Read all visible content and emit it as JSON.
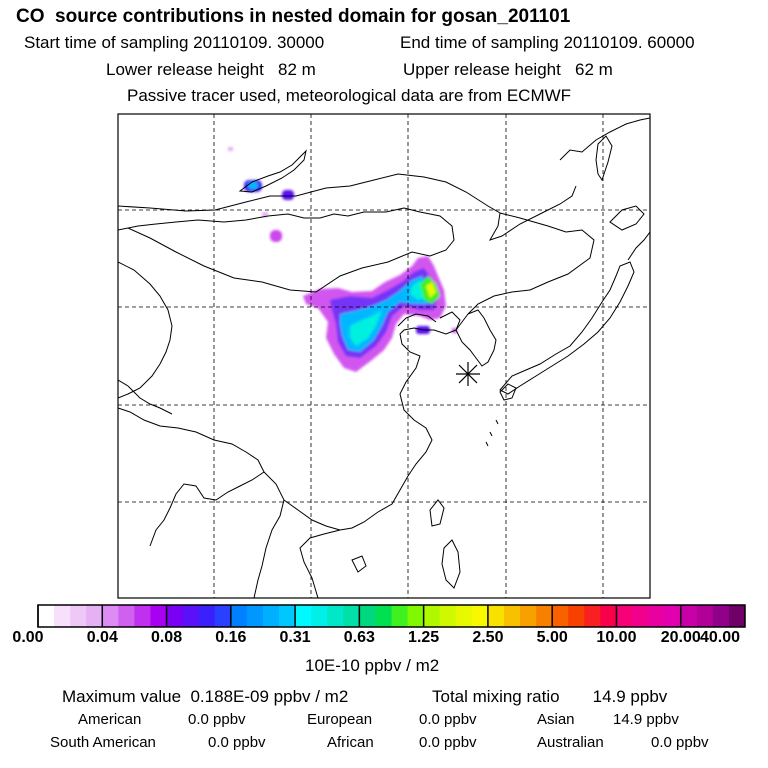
{
  "header": {
    "title": "CO  source contributions in nested domain for gosan_201101",
    "start_time_label": "Start time of sampling 20110109. 30000",
    "end_time_label": "End time of sampling 20110109. 60000",
    "lower_release_label": "Lower release height   82 m",
    "upper_release_label": "Upper release height   62 m",
    "tracer_note": "Passive tracer used, meteorological data are from ECMWF"
  },
  "colorbar": {
    "tick_labels": [
      "0.00",
      "0.04",
      "0.08",
      "0.16",
      "0.31",
      "0.63",
      "1.25",
      "2.50",
      "5.00",
      "10.00",
      "20.00",
      "40.00"
    ],
    "unit": "10E-10 ppbv / m2",
    "colors": [
      [
        "#ffffff",
        "#f6e0fb",
        "#eec8f7",
        "#e6b0f4"
      ],
      [
        "#dc8cf2",
        "#d060f0",
        "#c030f0",
        "#a800f0"
      ],
      [
        "#7a00f4",
        "#5a10f8",
        "#3a20fc",
        "#2a40ff"
      ],
      [
        "#0080ff",
        "#0098ff",
        "#00b0ff",
        "#00c8ff"
      ],
      [
        "#00f8ff",
        "#00f0e8",
        "#00e8c8",
        "#00e0a8"
      ],
      [
        "#00d880",
        "#00e050",
        "#40f020",
        "#80f800"
      ],
      [
        "#b0f800",
        "#d0f800",
        "#e8f800",
        "#f8f800"
      ],
      [
        "#f8e000",
        "#f8c000",
        "#f8a000",
        "#f88000"
      ],
      [
        "#f86000",
        "#f84000",
        "#f82020",
        "#f8004a"
      ],
      [
        "#f80078",
        "#f0008c",
        "#e800a0",
        "#e000b0"
      ],
      [
        "#c800a8",
        "#b00098",
        "#900088",
        "#700068"
      ]
    ]
  },
  "footer": {
    "max_value": "Maximum value  0.188E-09 ppbv / m2",
    "total_mixing": "Total mixing ratio       14.9 ppbv",
    "regions": [
      {
        "name": "American",
        "value": "0.0 ppbv"
      },
      {
        "name": "European",
        "value": "0.0 ppbv"
      },
      {
        "name": "Asian",
        "value": "14.9 ppbv"
      },
      {
        "name": "South American",
        "value": "0.0 ppbv"
      },
      {
        "name": "African",
        "value": "0.0 ppbv"
      },
      {
        "name": "Australian",
        "value": "0.0 ppbv"
      }
    ]
  },
  "map": {
    "receptor_marker": "asterisk",
    "grid": "dashed"
  }
}
